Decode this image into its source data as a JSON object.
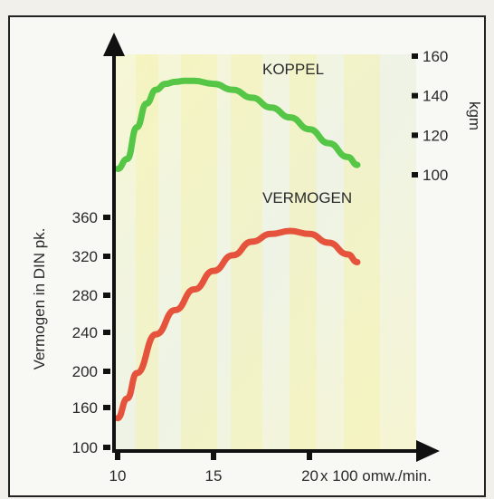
{
  "chart_data": {
    "type": "line",
    "x_unit_label": "x 100 omw./min.",
    "x_ticks": [
      10,
      15,
      20
    ],
    "xlim": [
      10,
      22.5
    ],
    "left_axis": {
      "label": "Vermogen in DIN pk.",
      "ticks": [
        100,
        160,
        200,
        240,
        280,
        320,
        360
      ],
      "ylim": [
        100,
        360
      ]
    },
    "right_axis": {
      "label": "kgm",
      "ticks": [
        100,
        120,
        140,
        160
      ],
      "ylim": [
        100,
        160
      ]
    },
    "series": [
      {
        "name": "KOPPEL",
        "axis": "right",
        "color": "#55c645",
        "x": [
          10,
          10.5,
          11,
          11.5,
          12,
          12.5,
          13,
          13.5,
          14,
          15,
          16,
          17,
          18,
          19,
          20,
          21,
          22,
          22.5
        ],
        "y": [
          103,
          108,
          124,
          136,
          143,
          146,
          147,
          147.5,
          147.5,
          146,
          143,
          139,
          134,
          129,
          123,
          116,
          109,
          105
        ]
      },
      {
        "name": "VERMOGEN",
        "axis": "left",
        "color": "#e6533c",
        "x": [
          10,
          10.5,
          11,
          12,
          13,
          14,
          15,
          16,
          17,
          18,
          19,
          20,
          21,
          22,
          22.5
        ],
        "y": [
          144,
          170,
          198,
          238,
          264,
          286,
          305,
          321,
          335,
          343,
          346,
          343,
          334,
          322,
          314
        ]
      }
    ],
    "grid": false
  }
}
